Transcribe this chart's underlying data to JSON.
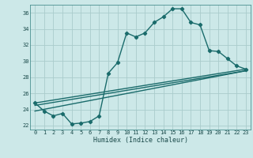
{
  "xlabel": "Humidex (Indice chaleur)",
  "ylabel": "",
  "bg_color": "#cce8e8",
  "grid_color": "#aacccc",
  "line_color": "#1a6b6b",
  "xlim": [
    -0.5,
    23.5
  ],
  "ylim": [
    21.5,
    37.0
  ],
  "yticks": [
    22,
    24,
    26,
    28,
    30,
    32,
    34,
    36
  ],
  "xticks": [
    0,
    1,
    2,
    3,
    4,
    5,
    6,
    7,
    8,
    9,
    10,
    11,
    12,
    13,
    14,
    15,
    16,
    17,
    18,
    19,
    20,
    21,
    22,
    23
  ],
  "line1_x": [
    0,
    1,
    2,
    3,
    4,
    5,
    6,
    7,
    8,
    9,
    10,
    11,
    12,
    13,
    14,
    15,
    16,
    17,
    18,
    19,
    20,
    21,
    22,
    23
  ],
  "line1_y": [
    24.8,
    23.8,
    23.2,
    23.5,
    22.2,
    22.3,
    22.5,
    23.2,
    28.5,
    29.8,
    33.5,
    33.0,
    33.5,
    34.8,
    35.5,
    36.5,
    36.5,
    34.8,
    34.5,
    31.3,
    31.2,
    30.3,
    29.4,
    29.0
  ],
  "line2_x": [
    0,
    23
  ],
  "line2_y": [
    24.8,
    29.0
  ],
  "line3_x": [
    0,
    23
  ],
  "line3_y": [
    23.8,
    28.8
  ],
  "line4_x": [
    0,
    23
  ],
  "line4_y": [
    24.5,
    28.8
  ],
  "marker_size": 2.2,
  "line_width": 1.0,
  "tick_labelsize": 5.0,
  "xlabel_fontsize": 6.0
}
